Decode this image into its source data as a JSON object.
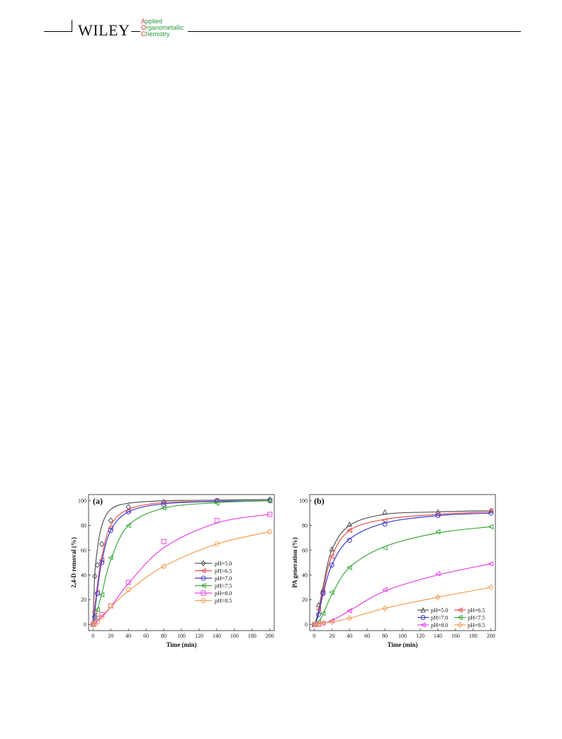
{
  "header": {
    "brand": "WILEY",
    "journal_lines": [
      {
        "cap": "A",
        "rest": "pplied"
      },
      {
        "cap": "O",
        "rest": "rganometallic"
      },
      {
        "cap": "C",
        "rest": "hemistry"
      }
    ]
  },
  "chart_data": [
    {
      "type": "line",
      "panel_label": "(a)",
      "xlabel": "Time (min)",
      "ylabel": "2,4-D removal (%)",
      "xlim": [
        -5,
        205
      ],
      "ylim": [
        -5,
        105
      ],
      "xticks": [
        0,
        20,
        40,
        60,
        80,
        100,
        120,
        140,
        160,
        180,
        200
      ],
      "yticks": [
        0,
        20,
        40,
        60,
        80,
        100
      ],
      "legend_position": "bottom-right",
      "legend_columns": 1,
      "x": [
        0,
        2,
        5,
        10,
        20,
        40,
        80,
        140,
        200
      ],
      "series": [
        {
          "name": "pH=5.0",
          "color": "#555555",
          "marker": "diamond",
          "values": [
            0,
            39,
            48,
            65,
            84,
            95,
            99,
            100,
            101
          ],
          "fit": [
            0,
            40,
            61,
            80,
            93,
            98,
            100,
            100.5,
            101
          ]
        },
        {
          "name": "pH=6.5",
          "color": "#e8534f",
          "marker": "left-triangle",
          "values": [
            0,
            10,
            26,
            52,
            78,
            92,
            98,
            100,
            100
          ],
          "fit": [
            0,
            14,
            32,
            55,
            80,
            93,
            98.5,
            99.5,
            100
          ]
        },
        {
          "name": "pH=7.0",
          "color": "#3a3ad8",
          "marker": "circle",
          "values": [
            0,
            6,
            25,
            50,
            76,
            91,
            97,
            100,
            100
          ],
          "fit": [
            0,
            10,
            28,
            51,
            76,
            91,
            97.5,
            99.5,
            100
          ]
        },
        {
          "name": "pH=7.5",
          "color": "#3ea93e",
          "marker": "left-triangle",
          "values": [
            0,
            5,
            12,
            24,
            54,
            80,
            94,
            98,
            100
          ],
          "fit": [
            0,
            5,
            12,
            25,
            52,
            80,
            94,
            98.5,
            100
          ]
        },
        {
          "name": "pH=8.0",
          "color": "#e544e5",
          "marker": "square",
          "values": [
            0,
            2,
            5,
            8,
            15,
            34,
            67,
            84,
            89
          ],
          "fit": [
            0,
            1,
            3,
            6,
            14,
            33,
            62,
            82,
            89
          ]
        },
        {
          "name": "pH=8.5",
          "color": "#f29f55",
          "marker": "circle",
          "values": [
            0,
            0,
            2,
            6,
            15,
            28,
            47,
            65,
            75
          ],
          "fit": [
            0,
            2,
            4,
            7,
            14,
            27,
            47,
            65,
            75
          ]
        }
      ]
    },
    {
      "type": "line",
      "panel_label": "(b)",
      "xlabel": "Time (min)",
      "ylabel": "PA generation (%)",
      "xlim": [
        -5,
        205
      ],
      "ylim": [
        -5,
        105
      ],
      "xticks": [
        0,
        20,
        40,
        60,
        80,
        100,
        120,
        140,
        160,
        180,
        200
      ],
      "yticks": [
        0,
        20,
        40,
        60,
        80,
        100
      ],
      "legend_position": "bottom-right",
      "legend_columns": 2,
      "x": [
        0,
        2,
        5,
        10,
        20,
        40,
        80,
        140,
        200
      ],
      "series": [
        {
          "name": "pH=5.0",
          "color": "#555555",
          "marker": "triangle",
          "values": [
            0,
            1,
            16,
            28,
            61,
            81,
            91,
            91,
            92
          ],
          "fit": [
            0,
            3,
            11,
            30,
            60,
            80,
            89,
            91,
            92
          ]
        },
        {
          "name": "pH=6.5",
          "color": "#e8534f",
          "marker": "left-triangle",
          "values": [
            0,
            0,
            12,
            26,
            55,
            76,
            84,
            89,
            92
          ],
          "fit": [
            0,
            2,
            9,
            27,
            55,
            76,
            85,
            89,
            91
          ]
        },
        {
          "name": "pH=7.0",
          "color": "#3a3ad8",
          "marker": "circle",
          "values": [
            0,
            0,
            8,
            25,
            48,
            68,
            81,
            88,
            90
          ],
          "fit": [
            0,
            2,
            8,
            24,
            48,
            69,
            82,
            88,
            90
          ]
        },
        {
          "name": "pH=7.5",
          "color": "#3ea93e",
          "marker": "left-triangle",
          "values": [
            0,
            0,
            2,
            9,
            26,
            46,
            62,
            75,
            79
          ],
          "fit": [
            0,
            0.5,
            2,
            8,
            24,
            46,
            63,
            74,
            79
          ]
        },
        {
          "name": "pH=8.0",
          "color": "#e544e5",
          "marker": "left-triangle",
          "values": [
            0,
            0,
            0,
            1,
            3,
            11,
            28,
            41,
            49
          ],
          "fit": [
            0,
            0,
            0.5,
            1,
            3,
            11,
            27,
            40,
            49
          ]
        },
        {
          "name": "pH=8.5",
          "color": "#f29f55",
          "marker": "diamond",
          "values": [
            0,
            0,
            0,
            1,
            2,
            5,
            13,
            22,
            30
          ],
          "fit": [
            0,
            0,
            0.3,
            1,
            2,
            5,
            13,
            22,
            30
          ]
        }
      ]
    }
  ]
}
